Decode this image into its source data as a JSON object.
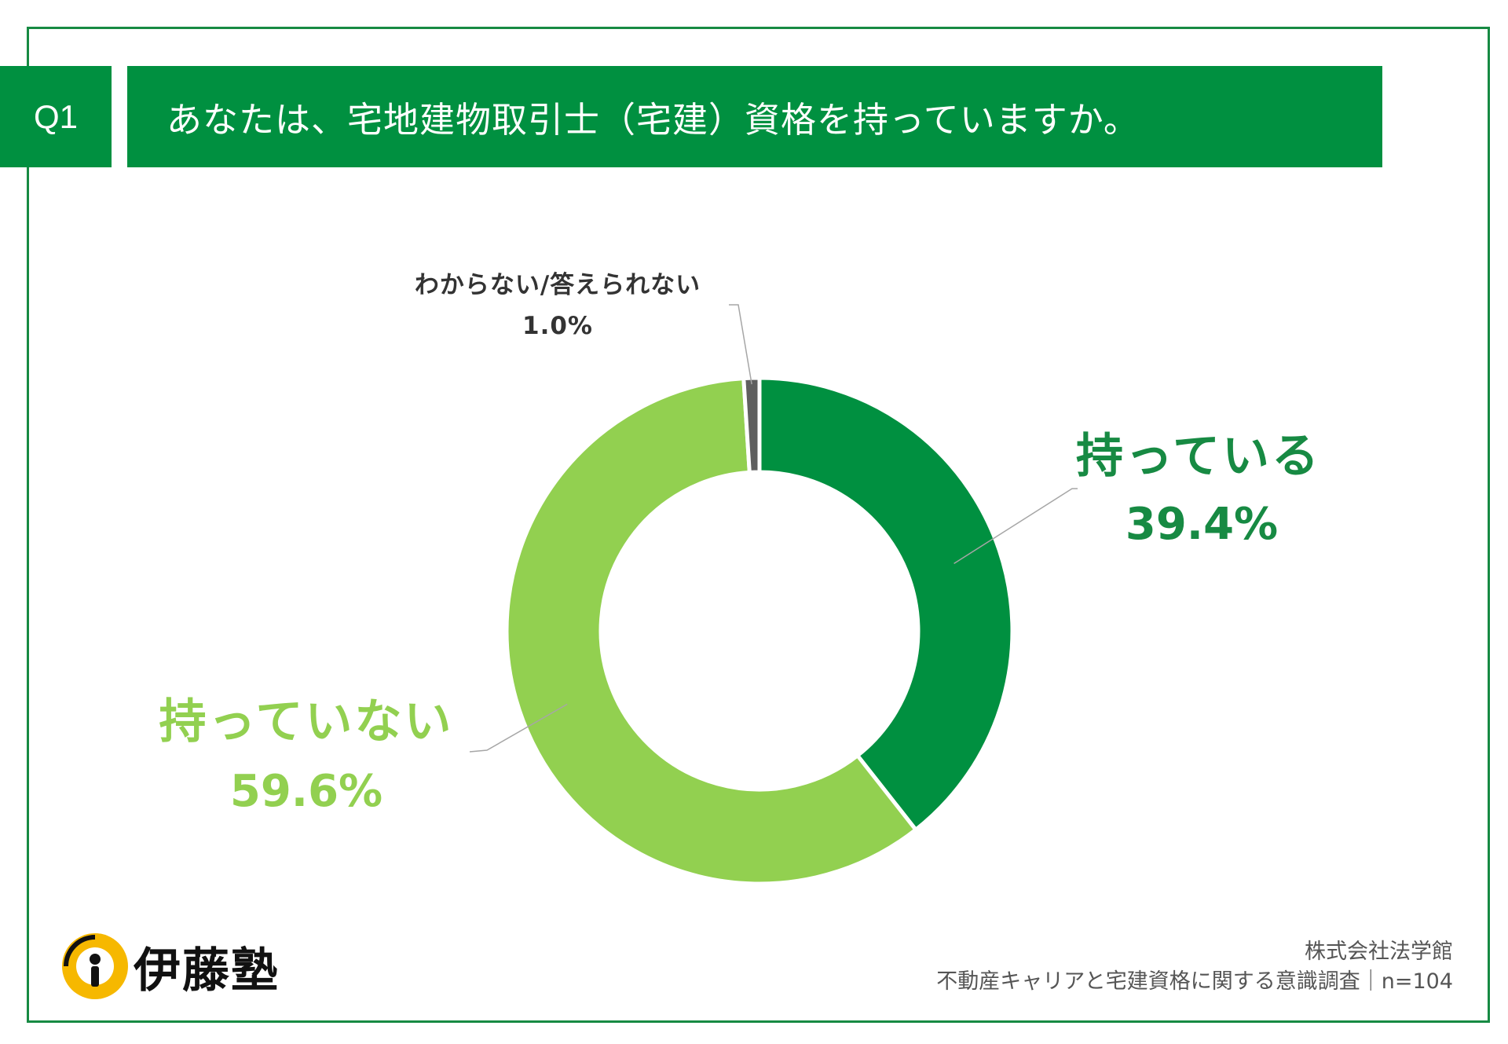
{
  "header": {
    "question_no": "Q1",
    "question": "あなたは、宅地建物取引士（宅建）資格を持っていますか。"
  },
  "chart_data": {
    "type": "pie",
    "variant": "donut",
    "series": [
      {
        "name": "持っている",
        "value": 39.4,
        "label": "39.4%",
        "color": "#009040"
      },
      {
        "name": "持っていない",
        "value": 59.6,
        "label": "59.6%",
        "color": "#92d050"
      },
      {
        "name": "わからない/答えられない",
        "value": 1.0,
        "label": "1.0%",
        "color": "#5f5f5f"
      }
    ]
  },
  "logo": {
    "name": "伊藤塾"
  },
  "footer": {
    "company": "株式会社法学館",
    "survey": "不動産キャリアと宅建資格に関する意識調査｜n=104"
  }
}
